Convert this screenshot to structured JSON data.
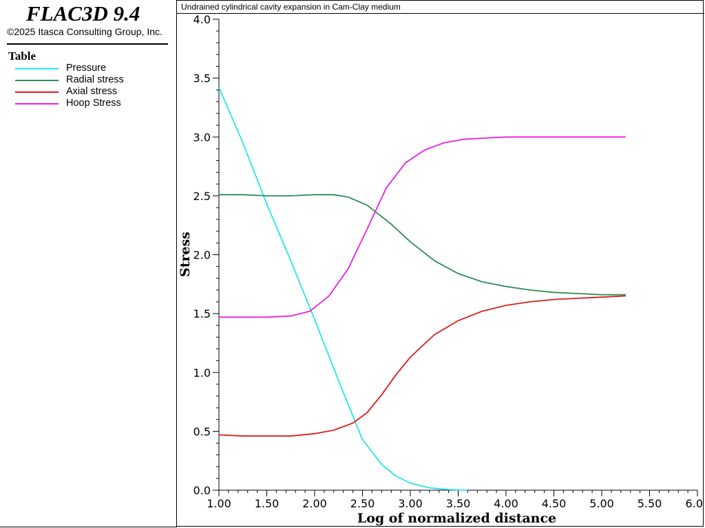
{
  "app": {
    "title": "FLAC3D 9.4",
    "copyright": "©2025 Itasca Consulting Group, Inc."
  },
  "legend": {
    "heading": "Table",
    "items": [
      {
        "label": "Pressure",
        "color": "#22e6ee"
      },
      {
        "label": "Radial stress",
        "color": "#2e8b57"
      },
      {
        "label": "Axial stress",
        "color": "#dd1a1a"
      },
      {
        "label": "Hoop Stress",
        "color": "#ee1ae6"
      }
    ]
  },
  "chart_data": {
    "type": "line",
    "title": "Undrained cylindrical cavity expansion in Cam-Clay medium",
    "xlabel": "Log of normalized distance",
    "ylabel": "Stress",
    "xlim": [
      1.0,
      6.0
    ],
    "ylim": [
      0.0,
      4.0
    ],
    "xticks": [
      "1.00",
      "1.50",
      "2.00",
      "2.50",
      "3.00",
      "3.50",
      "4.00",
      "4.50",
      "5.00",
      "5.50",
      "6.0"
    ],
    "yticks": [
      "0.0",
      "0.5",
      "1.0",
      "1.5",
      "2.0",
      "2.5",
      "3.0",
      "3.5",
      "4.0"
    ],
    "grid": false,
    "series": [
      {
        "name": "Pressure",
        "color": "#22e6ee",
        "x": [
          1.0,
          1.25,
          1.5,
          1.75,
          2.0,
          2.25,
          2.5,
          2.7,
          2.85,
          3.0,
          3.2,
          3.4,
          3.6
        ],
        "y": [
          3.42,
          2.95,
          2.43,
          1.95,
          1.45,
          0.93,
          0.43,
          0.22,
          0.12,
          0.06,
          0.02,
          0.005,
          0.0
        ]
      },
      {
        "name": "Radial stress",
        "color": "#2e8b57",
        "x": [
          1.0,
          1.25,
          1.5,
          1.75,
          2.0,
          2.2,
          2.35,
          2.55,
          2.8,
          3.0,
          3.25,
          3.5,
          3.75,
          4.0,
          4.25,
          4.5,
          4.75,
          5.0,
          5.25
        ],
        "y": [
          2.51,
          2.51,
          2.5,
          2.5,
          2.51,
          2.51,
          2.49,
          2.42,
          2.26,
          2.11,
          1.95,
          1.84,
          1.77,
          1.73,
          1.7,
          1.68,
          1.67,
          1.66,
          1.66
        ]
      },
      {
        "name": "Axial stress",
        "color": "#dd1a1a",
        "x": [
          1.0,
          1.25,
          1.5,
          1.75,
          2.0,
          2.2,
          2.4,
          2.55,
          2.7,
          2.85,
          3.0,
          3.25,
          3.5,
          3.75,
          4.0,
          4.25,
          4.5,
          4.75,
          5.0,
          5.25
        ],
        "y": [
          0.47,
          0.46,
          0.46,
          0.46,
          0.48,
          0.51,
          0.57,
          0.66,
          0.81,
          0.98,
          1.13,
          1.32,
          1.44,
          1.52,
          1.57,
          1.6,
          1.62,
          1.63,
          1.64,
          1.65
        ]
      },
      {
        "name": "Hoop Stress",
        "color": "#ee1ae6",
        "x": [
          1.0,
          1.25,
          1.5,
          1.75,
          1.95,
          2.15,
          2.35,
          2.55,
          2.75,
          2.95,
          3.15,
          3.35,
          3.55,
          3.75,
          4.0,
          4.5,
          5.0,
          5.25
        ],
        "y": [
          1.47,
          1.47,
          1.47,
          1.48,
          1.52,
          1.65,
          1.88,
          2.22,
          2.57,
          2.78,
          2.89,
          2.95,
          2.98,
          2.99,
          3.0,
          3.0,
          3.0,
          3.0
        ]
      }
    ]
  }
}
